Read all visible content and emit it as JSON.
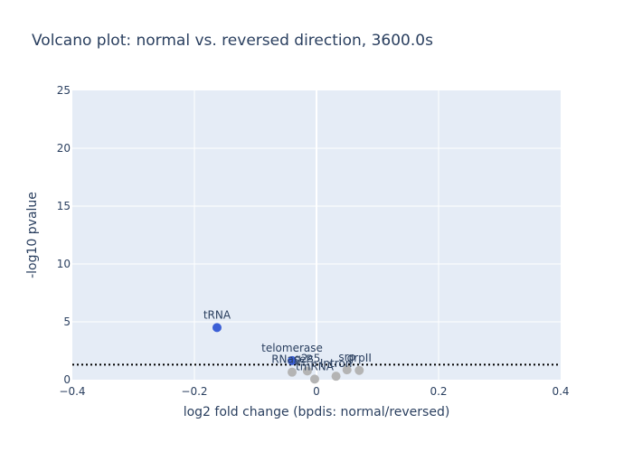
{
  "chart_data": {
    "type": "scatter",
    "title": "Volcano plot: normal vs. reversed direction, 3600.0s",
    "xlabel": "log2 fold change (bpdis: normal/reversed)",
    "ylabel": "-log10 pvalue",
    "xlim": [
      -0.4,
      0.4
    ],
    "ylim": [
      0,
      25
    ],
    "xticks": [
      -0.4,
      -0.2,
      0,
      0.2,
      0.4
    ],
    "xtick_labels": [
      "−0.4",
      "−0.2",
      "0",
      "0.2",
      "0.4"
    ],
    "yticks": [
      0,
      5,
      10,
      15,
      20,
      25
    ],
    "ytick_labels": [
      "0",
      "5",
      "10",
      "15",
      "20",
      "25"
    ],
    "grid": true,
    "threshold_y": 1.3,
    "colors": {
      "plot_bg": "#e5ecf6",
      "grid": "#ffffff",
      "significant": "#3b5fd6",
      "not_significant": "#b4b4b4",
      "text": "#2a3f5f",
      "threshold": "#000000"
    },
    "points": [
      {
        "label": "tRNA",
        "x": -0.163,
        "y": 4.5,
        "significant": true
      },
      {
        "label": "telomerase",
        "x": -0.04,
        "y": 1.65,
        "significant": true
      },
      {
        "label": "RNaseP",
        "x": -0.04,
        "y": 0.65,
        "significant": false
      },
      {
        "label": "g2s5",
        "x": -0.015,
        "y": 0.75,
        "significant": false
      },
      {
        "label": "tmRNA",
        "x": -0.003,
        "y": 0.05,
        "significant": false
      },
      {
        "label": "Intron",
        "x": 0.032,
        "y": 0.3,
        "significant": false
      },
      {
        "label": "srp",
        "x": 0.05,
        "y": 0.85,
        "significant": false
      },
      {
        "label": "grpII",
        "x": 0.07,
        "y": 0.8,
        "significant": false
      }
    ]
  }
}
